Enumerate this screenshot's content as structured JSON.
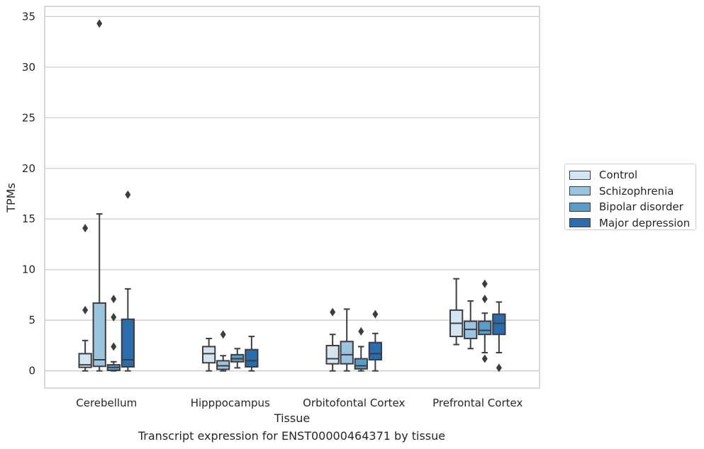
{
  "caption": "Transcript expression for ENST00000464371 by tissue",
  "chart_data": {
    "type": "box",
    "xlabel": "Tissue",
    "ylabel": "TPMs",
    "ylim": [
      -1.7,
      36
    ],
    "yticks": [
      0,
      5,
      10,
      15,
      20,
      25,
      30,
      35
    ],
    "grid": "horizontal",
    "legend_position": "right",
    "categories": [
      "Cerebellum",
      "Hipppocampus",
      "Orbitofontal Cortex",
      "Prefrontal Cortex"
    ],
    "series": [
      {
        "name": "Control",
        "color": "#d3e4f3",
        "boxes": [
          {
            "whislo": 0.0,
            "q1": 0.35,
            "med": 0.6,
            "q3": 1.7,
            "whishi": 3.0,
            "fliers": [
              6.0,
              14.1
            ]
          },
          {
            "whislo": 0.0,
            "q1": 0.8,
            "med": 1.7,
            "q3": 2.4,
            "whishi": 3.2,
            "fliers": []
          },
          {
            "whislo": 0.0,
            "q1": 0.7,
            "med": 1.2,
            "q3": 2.5,
            "whishi": 3.6,
            "fliers": [
              5.8
            ]
          },
          {
            "whislo": 2.6,
            "q1": 3.4,
            "med": 4.7,
            "q3": 6.0,
            "whishi": 9.1,
            "fliers": []
          }
        ]
      },
      {
        "name": "Schizophrenia",
        "color": "#9ac4e0",
        "boxes": [
          {
            "whislo": 0.0,
            "q1": 0.45,
            "med": 1.1,
            "q3": 6.7,
            "whishi": 15.5,
            "fliers": [
              34.3
            ]
          },
          {
            "whislo": 0.0,
            "q1": 0.15,
            "med": 0.5,
            "q3": 1.0,
            "whishi": 1.5,
            "fliers": [
              3.6
            ]
          },
          {
            "whislo": 0.0,
            "q1": 0.7,
            "med": 1.6,
            "q3": 2.9,
            "whishi": 6.1,
            "fliers": []
          },
          {
            "whislo": 2.2,
            "q1": 3.2,
            "med": 4.1,
            "q3": 4.9,
            "whishi": 6.9,
            "fliers": []
          }
        ]
      },
      {
        "name": "Bipolar disorder",
        "color": "#5a9dca",
        "boxes": [
          {
            "whislo": 0.0,
            "q1": 0.05,
            "med": 0.35,
            "q3": 0.6,
            "whishi": 0.9,
            "fliers": [
              2.4,
              5.3,
              7.1
            ]
          },
          {
            "whislo": 0.3,
            "q1": 0.9,
            "med": 1.2,
            "q3": 1.6,
            "whishi": 2.2,
            "fliers": []
          },
          {
            "whislo": 0.0,
            "q1": 0.2,
            "med": 0.5,
            "q3": 1.2,
            "whishi": 2.4,
            "fliers": [
              3.9
            ]
          },
          {
            "whislo": 1.8,
            "q1": 3.6,
            "med": 4.0,
            "q3": 4.9,
            "whishi": 5.7,
            "fliers": [
              1.2,
              7.1,
              8.6
            ]
          }
        ]
      },
      {
        "name": "Major depression",
        "color": "#2a6cad",
        "boxes": [
          {
            "whislo": 0.0,
            "q1": 0.4,
            "med": 1.1,
            "q3": 5.1,
            "whishi": 8.1,
            "fliers": [
              17.4
            ]
          },
          {
            "whislo": 0.0,
            "q1": 0.4,
            "med": 1.0,
            "q3": 2.1,
            "whishi": 3.4,
            "fliers": []
          },
          {
            "whislo": 0.0,
            "q1": 1.1,
            "med": 1.7,
            "q3": 2.8,
            "whishi": 3.7,
            "fliers": [
              5.6
            ]
          },
          {
            "whislo": 1.8,
            "q1": 3.6,
            "med": 4.7,
            "q3": 5.6,
            "whishi": 6.8,
            "fliers": [
              0.3
            ]
          }
        ]
      }
    ]
  }
}
